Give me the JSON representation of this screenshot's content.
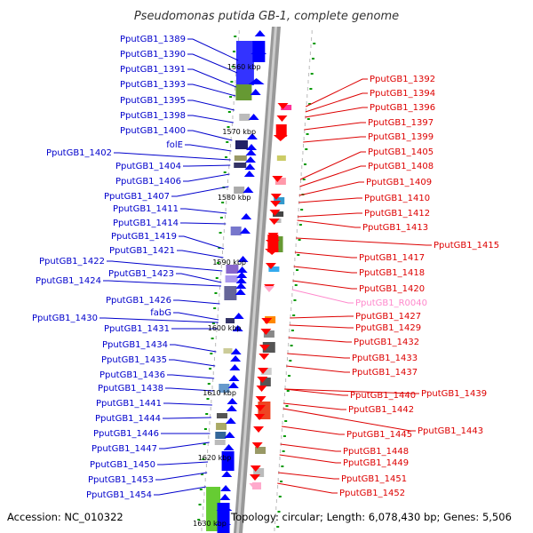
{
  "title": "Pseudomonas putida GB-1, complete genome",
  "footer": {
    "accession": "Accession: NC_010322",
    "summary": "Topology: circular; Length: 6,078,430 bp; Genes: 5,506"
  },
  "colors": {
    "left_label": "#0000cc",
    "right_label": "#dd0000",
    "rna_label": "#ff88cc",
    "forward_arrow": "#0000ff",
    "reverse_arrow": "#ff0000",
    "backbone": "#999999",
    "tick": "#009900"
  },
  "kbp_marks": [
    "1560 kbp",
    "1570 kbp",
    "1580 kbp",
    "1590 kbp",
    "1600 kbp",
    "1610 kbp",
    "1620 kbp",
    "1630 kbp"
  ],
  "left_genes": [
    "PputGB1_1389",
    "PputGB1_1390",
    "PputGB1_1391",
    "PputGB1_1393",
    "PputGB1_1395",
    "PputGB1_1398",
    "PputGB1_1400",
    "folE",
    "PputGB1_1402",
    "PputGB1_1404",
    "PputGB1_1406",
    "PputGB1_1407",
    "PputGB1_1411",
    "PputGB1_1414",
    "PputGB1_1419",
    "PputGB1_1421",
    "PputGB1_1422",
    "PputGB1_1423",
    "PputGB1_1424",
    "PputGB1_1426",
    "fabG",
    "PputGB1_1430",
    "PputGB1_1431",
    "PputGB1_1434",
    "PputGB1_1435",
    "PputGB1_1436",
    "PputGB1_1438",
    "PputGB1_1441",
    "PputGB1_1444",
    "PputGB1_1446",
    "PputGB1_1447",
    "PputGB1_1450",
    "PputGB1_1453",
    "PputGB1_1454"
  ],
  "right_genes": [
    "PputGB1_1392",
    "PputGB1_1394",
    "PputGB1_1396",
    "PputGB1_1397",
    "PputGB1_1399",
    "PputGB1_1405",
    "PputGB1_1408",
    "PputGB1_1409",
    "PputGB1_1410",
    "PputGB1_1412",
    "PputGB1_1413",
    "PputGB1_1415",
    "PputGB1_1417",
    "PputGB1_1418",
    "PputGB1_1420",
    "PputGB1_R0040",
    "PputGB1_1427",
    "PputGB1_1429",
    "PputGB1_1432",
    "PputGB1_1433",
    "PputGB1_1437",
    "PputGB1_1440",
    "PputGB1_1439",
    "PputGB1_1442",
    "PputGB1_1443",
    "PputGB1_1445",
    "PputGB1_1448",
    "PputGB1_1449",
    "PputGB1_1451",
    "PputGB1_1452"
  ]
}
